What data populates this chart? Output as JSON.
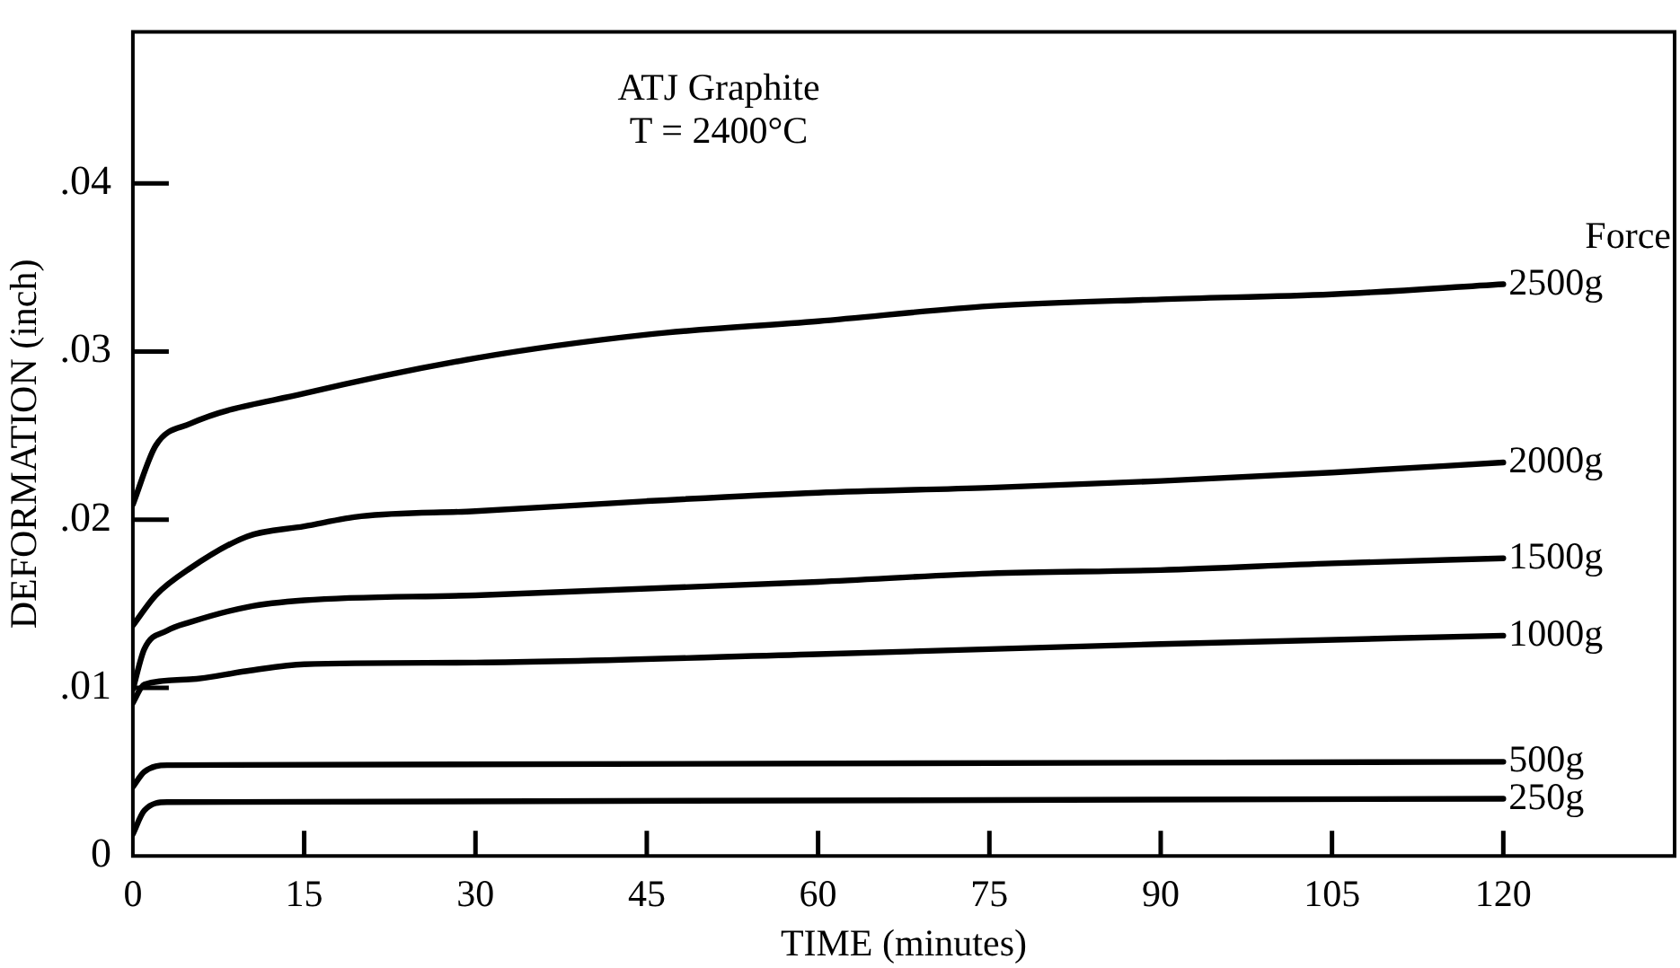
{
  "chart_data": {
    "type": "line",
    "title": "ATJ Graphite",
    "subtitle": "T = 2400°C",
    "xlabel": "TIME (minutes)",
    "ylabel": "DEFORMATION (inch)",
    "legend_title": "Force",
    "xlim": [
      0,
      135
    ],
    "xticks": [
      0,
      15,
      30,
      45,
      60,
      75,
      90,
      105,
      120
    ],
    "ylim": [
      0,
      0.049
    ],
    "yticks": [
      0,
      {
        "value": 0.01,
        "label": ".01"
      },
      {
        "value": 0.02,
        "label": ".02"
      },
      {
        "value": 0.03,
        "label": ".03"
      },
      {
        "value": 0.04,
        "label": ".04"
      }
    ],
    "marker": "none",
    "line_style": "solid",
    "series": [
      {
        "name": "2500g",
        "color": "#000000",
        "x": [
          0,
          2,
          5,
          15,
          30,
          45,
          60,
          75,
          90,
          105,
          120
        ],
        "values": [
          0.0209,
          0.0244,
          0.0257,
          0.0275,
          0.0296,
          0.031,
          0.0318,
          0.0327,
          0.0331,
          0.0334,
          0.034
        ]
      },
      {
        "name": "2000g",
        "color": "#000000",
        "x": [
          0,
          2,
          5,
          10,
          15,
          20,
          30,
          45,
          60,
          75,
          90,
          105,
          120
        ],
        "values": [
          0.0137,
          0.0155,
          0.0171,
          0.019,
          0.0196,
          0.0202,
          0.0205,
          0.0211,
          0.0216,
          0.0219,
          0.0223,
          0.0228,
          0.0234
        ]
      },
      {
        "name": "1500g",
        "color": "#000000",
        "x": [
          0,
          1,
          3,
          5,
          10,
          15,
          30,
          45,
          60,
          75,
          90,
          105,
          120
        ],
        "values": [
          0.0099,
          0.0123,
          0.0134,
          0.0139,
          0.0148,
          0.0152,
          0.0155,
          0.0159,
          0.0163,
          0.0168,
          0.017,
          0.0174,
          0.0177
        ]
      },
      {
        "name": "1000g",
        "color": "#000000",
        "x": [
          0,
          1,
          5,
          10,
          15,
          30,
          60,
          75,
          90,
          120
        ],
        "values": [
          0.0091,
          0.0102,
          0.0105,
          0.011,
          0.0114,
          0.0115,
          0.012,
          0.0123,
          0.0126,
          0.0131
        ]
      },
      {
        "name": "500g",
        "color": "#000000",
        "x": [
          0,
          1,
          3,
          120
        ],
        "values": [
          0.0041,
          0.005,
          0.0054,
          0.0056
        ]
      },
      {
        "name": "250g",
        "color": "#000000",
        "x": [
          0,
          1,
          3,
          120
        ],
        "values": [
          0.0013,
          0.0027,
          0.0032,
          0.0034
        ]
      }
    ]
  }
}
